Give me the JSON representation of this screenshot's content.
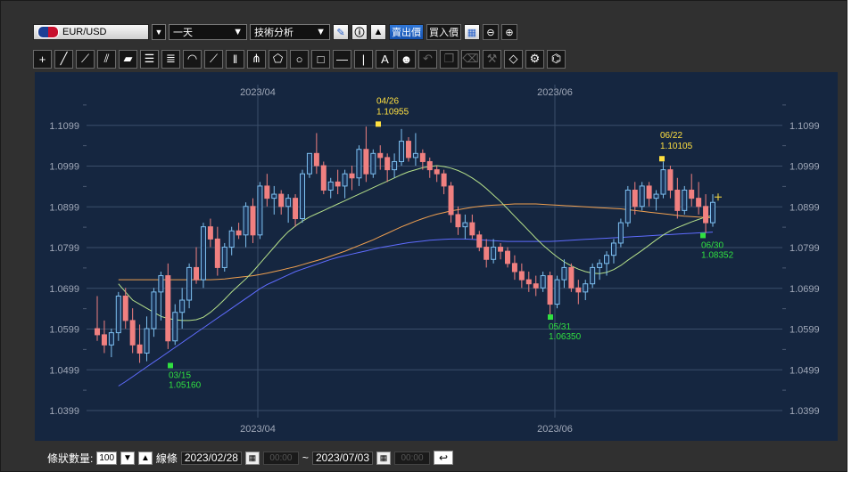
{
  "toolbar": {
    "symbol": "EUR/USD",
    "period": "一天",
    "analysis": "技術分析",
    "bid_label": "賣出價",
    "ask_label": "買入價",
    "icon_names": [
      "pen-icon",
      "info-icon",
      "mountain-chart-icon",
      "chart-type-icon",
      "zoom-out-icon",
      "zoom-in-icon"
    ]
  },
  "drawing_tools": [
    "crosshair-icon",
    "line-icon",
    "ray-icon",
    "extended-line-icon",
    "ruler-icon",
    "parallel-lines-icon",
    "fibonacci-icon",
    "fibonacci-arc-icon",
    "fan-icon",
    "cycle-lines-icon",
    "pitchfork-icon",
    "pentagon-icon",
    "circle-icon",
    "rectangle-icon",
    "horizontal-line-icon",
    "vertical-line-icon",
    "text-icon",
    "emoji-icon",
    "undo-icon",
    "copy-icon",
    "delete-icon",
    "wrench-icon",
    "eraser-icon",
    "settings-icon",
    "magnet-icon"
  ],
  "bottom": {
    "count_label": "條狀數量:",
    "count_value": "100",
    "line_label": "線條",
    "start_date": "2023/02/28",
    "start_time": "00:00",
    "tilde": "~",
    "end_date": "2023/07/03",
    "end_time": "00:00"
  },
  "chart_data": {
    "type": "candlestick",
    "yticks": [
      1.0399,
      1.0499,
      1.0599,
      1.0699,
      1.0799,
      1.0899,
      1.0999,
      1.1099
    ],
    "ylim": [
      1.0399,
      1.1199
    ],
    "xticks": [
      "2023/04",
      "2023/06"
    ],
    "grid": true,
    "annotations": [
      {
        "date": "04/26",
        "value": "1.10955",
        "kind": "high"
      },
      {
        "date": "06/22",
        "value": "1.10105",
        "kind": "high"
      },
      {
        "date": "03/15",
        "value": "1.05160",
        "kind": "low"
      },
      {
        "date": "05/31",
        "value": "1.06350",
        "kind": "low"
      },
      {
        "date": "06/30",
        "value": "1.08352",
        "kind": "low"
      }
    ],
    "candles": [
      [
        1.06,
        1.068,
        1.057,
        1.0585
      ],
      [
        1.0585,
        1.062,
        1.054,
        1.056
      ],
      [
        1.056,
        1.06,
        1.053,
        1.059
      ],
      [
        1.059,
        1.069,
        1.057,
        1.068
      ],
      [
        1.068,
        1.07,
        1.06,
        1.062
      ],
      [
        1.062,
        1.065,
        1.054,
        1.056
      ],
      [
        1.056,
        1.061,
        1.0516,
        1.054
      ],
      [
        1.054,
        1.063,
        1.052,
        1.06
      ],
      [
        1.06,
        1.07,
        1.058,
        1.069
      ],
      [
        1.069,
        1.074,
        1.062,
        1.073
      ],
      [
        1.073,
        1.076,
        1.055,
        1.057
      ],
      [
        1.057,
        1.066,
        1.056,
        1.064
      ],
      [
        1.064,
        1.07,
        1.06,
        1.067
      ],
      [
        1.067,
        1.076,
        1.065,
        1.075
      ],
      [
        1.075,
        1.08,
        1.071,
        1.072
      ],
      [
        1.072,
        1.086,
        1.07,
        1.085
      ],
      [
        1.085,
        1.087,
        1.08,
        1.082
      ],
      [
        1.082,
        1.085,
        1.073,
        1.075
      ],
      [
        1.075,
        1.081,
        1.074,
        1.08
      ],
      [
        1.08,
        1.085,
        1.078,
        1.084
      ],
      [
        1.084,
        1.086,
        1.082,
        1.083
      ],
      [
        1.083,
        1.091,
        1.08,
        1.09
      ],
      [
        1.09,
        1.092,
        1.081,
        1.083
      ],
      [
        1.083,
        1.096,
        1.082,
        1.095
      ],
      [
        1.095,
        1.098,
        1.09,
        1.092
      ],
      [
        1.092,
        1.095,
        1.088,
        1.093
      ],
      [
        1.093,
        1.094,
        1.088,
        1.09
      ],
      [
        1.09,
        1.093,
        1.086,
        1.092
      ],
      [
        1.092,
        1.093,
        1.085,
        1.087
      ],
      [
        1.087,
        1.099,
        1.086,
        1.098
      ],
      [
        1.098,
        1.103,
        1.097,
        1.103
      ],
      [
        1.103,
        1.108,
        1.098,
        1.1
      ],
      [
        1.1,
        1.101,
        1.093,
        1.094
      ],
      [
        1.094,
        1.097,
        1.092,
        1.096
      ],
      [
        1.096,
        1.099,
        1.093,
        1.095
      ],
      [
        1.095,
        1.099,
        1.092,
        1.098
      ],
      [
        1.098,
        1.1,
        1.094,
        1.097
      ],
      [
        1.097,
        1.105,
        1.095,
        1.104
      ],
      [
        1.104,
        1.1096,
        1.096,
        1.098
      ],
      [
        1.098,
        1.104,
        1.097,
        1.103
      ],
      [
        1.103,
        1.105,
        1.099,
        1.102
      ],
      [
        1.102,
        1.103,
        1.096,
        1.099
      ],
      [
        1.099,
        1.103,
        1.097,
        1.101
      ],
      [
        1.101,
        1.109,
        1.1,
        1.106
      ],
      [
        1.106,
        1.107,
        1.101,
        1.102
      ],
      [
        1.102,
        1.108,
        1.1,
        1.103
      ],
      [
        1.103,
        1.104,
        1.099,
        1.101
      ],
      [
        1.101,
        1.102,
        1.097,
        1.099
      ],
      [
        1.099,
        1.1,
        1.096,
        1.098
      ],
      [
        1.098,
        1.099,
        1.093,
        1.095
      ],
      [
        1.095,
        1.096,
        1.086,
        1.088
      ],
      [
        1.088,
        1.09,
        1.083,
        1.085
      ],
      [
        1.085,
        1.088,
        1.082,
        1.086
      ],
      [
        1.086,
        1.088,
        1.082,
        1.083
      ],
      [
        1.083,
        1.084,
        1.079,
        1.08
      ],
      [
        1.08,
        1.082,
        1.075,
        1.077
      ],
      [
        1.077,
        1.082,
        1.076,
        1.08
      ],
      [
        1.08,
        1.081,
        1.077,
        1.079
      ],
      [
        1.079,
        1.08,
        1.075,
        1.076
      ],
      [
        1.076,
        1.078,
        1.072,
        1.074
      ],
      [
        1.074,
        1.076,
        1.07,
        1.072
      ],
      [
        1.072,
        1.074,
        1.069,
        1.071
      ],
      [
        1.071,
        1.073,
        1.068,
        1.07
      ],
      [
        1.07,
        1.074,
        1.069,
        1.073
      ],
      [
        1.073,
        1.074,
        1.0635,
        1.066
      ],
      [
        1.066,
        1.073,
        1.065,
        1.072
      ],
      [
        1.072,
        1.077,
        1.07,
        1.075
      ],
      [
        1.075,
        1.076,
        1.069,
        1.07
      ],
      [
        1.07,
        1.072,
        1.066,
        1.069
      ],
      [
        1.069,
        1.072,
        1.067,
        1.071
      ],
      [
        1.071,
        1.076,
        1.07,
        1.075
      ],
      [
        1.075,
        1.077,
        1.072,
        1.076
      ],
      [
        1.076,
        1.079,
        1.073,
        1.078
      ],
      [
        1.078,
        1.082,
        1.076,
        1.081
      ],
      [
        1.081,
        1.087,
        1.08,
        1.086
      ],
      [
        1.086,
        1.095,
        1.085,
        1.094
      ],
      [
        1.094,
        1.096,
        1.088,
        1.09
      ],
      [
        1.09,
        1.096,
        1.089,
        1.095
      ],
      [
        1.095,
        1.096,
        1.09,
        1.092
      ],
      [
        1.092,
        1.094,
        1.089,
        1.093
      ],
      [
        1.093,
        1.101,
        1.092,
        1.099
      ],
      [
        1.099,
        1.1,
        1.092,
        1.094
      ],
      [
        1.094,
        1.097,
        1.087,
        1.089
      ],
      [
        1.089,
        1.095,
        1.088,
        1.094
      ],
      [
        1.094,
        1.098,
        1.09,
        1.092
      ],
      [
        1.092,
        1.096,
        1.088,
        1.09
      ],
      [
        1.09,
        1.093,
        1.0835,
        1.086
      ],
      [
        1.086,
        1.093,
        1.085,
        1.091
      ]
    ],
    "ma_short": [
      1.071,
      1.069,
      1.067,
      1.066,
      1.065,
      1.064,
      1.063,
      1.0625,
      1.0622,
      1.062,
      1.062,
      1.0622,
      1.0628,
      1.064,
      1.0655,
      1.0672,
      1.069,
      1.0706,
      1.0722,
      1.074,
      1.076,
      1.078,
      1.08,
      1.082,
      1.0838,
      1.0852,
      1.0864,
      1.0874,
      1.0882,
      1.089,
      1.0898,
      1.0906,
      1.0914,
      1.0922,
      1.093,
      1.0938,
      1.0946,
      1.0954,
      1.0962,
      1.097,
      1.0978,
      1.0985,
      1.099,
      1.0995,
      1.0998,
      1.1,
      1.0998,
      1.0994,
      1.0988,
      1.098,
      1.097,
      1.0958,
      1.0944,
      1.0928,
      1.0912,
      1.0894,
      1.0876,
      1.0858,
      1.084,
      1.0822,
      1.0805,
      1.079,
      1.0776,
      1.0764,
      1.0754,
      1.0746,
      1.074,
      1.0736,
      1.0735,
      1.0738,
      1.0745,
      1.0755,
      1.0768,
      1.078,
      1.0792,
      1.0805,
      1.0818,
      1.083,
      1.084,
      1.0848,
      1.0855,
      1.0862,
      1.0868,
      1.0874,
      1.0878
    ],
    "ma_mid": [
      1.072,
      1.072,
      1.072,
      1.072,
      1.072,
      1.072,
      1.072,
      1.072,
      1.072,
      1.072,
      1.072,
      1.072,
      1.072,
      1.072,
      1.0721,
      1.0722,
      1.0724,
      1.0726,
      1.0728,
      1.073,
      1.0733,
      1.0736,
      1.074,
      1.0744,
      1.0748,
      1.0752,
      1.0757,
      1.0762,
      1.0767,
      1.0772,
      1.0778,
      1.0784,
      1.079,
      1.0797,
      1.0804,
      1.0811,
      1.0818,
      1.0826,
      1.0834,
      1.0842,
      1.085,
      1.0857,
      1.0864,
      1.087,
      1.0876,
      1.0881,
      1.0885,
      1.0889,
      1.0892,
      1.0895,
      1.0898,
      1.09,
      1.0902,
      1.0903,
      1.0904,
      1.0905,
      1.0906,
      1.0906,
      1.0906,
      1.0906,
      1.0905,
      1.0904,
      1.0903,
      1.0902,
      1.0901,
      1.09,
      1.0899,
      1.0898,
      1.0897,
      1.0896,
      1.0895,
      1.0894,
      1.0892,
      1.089,
      1.0888,
      1.0886,
      1.0884,
      1.0882,
      1.088,
      1.0878,
      1.0876,
      1.0875,
      1.0874,
      1.0873,
      1.0872
    ],
    "ma_long": [
      1.0459,
      1.047,
      1.0482,
      1.0494,
      1.0506,
      1.0518,
      1.053,
      1.0542,
      1.0554,
      1.0566,
      1.0578,
      1.059,
      1.0602,
      1.0614,
      1.0626,
      1.0638,
      1.065,
      1.0662,
      1.0674,
      1.0686,
      1.0698,
      1.0708,
      1.0716,
      1.0724,
      1.0732,
      1.074,
      1.0746,
      1.0752,
      1.0758,
      1.0764,
      1.077,
      1.0775,
      1.0779,
      1.0783,
      1.0787,
      1.0791,
      1.0795,
      1.0799,
      1.0802,
      1.0805,
      1.0808,
      1.0811,
      1.0813,
      1.0815,
      1.0817,
      1.0818,
      1.0819,
      1.082,
      1.082,
      1.082,
      1.0819,
      1.0818,
      1.0817,
      1.0816,
      1.0815,
      1.0814,
      1.0814,
      1.0814,
      1.0814,
      1.0814,
      1.0814,
      1.0814,
      1.0815,
      1.0816,
      1.0817,
      1.0818,
      1.0819,
      1.082,
      1.0821,
      1.0822,
      1.0823,
      1.0824,
      1.0825,
      1.0826,
      1.0827,
      1.0828,
      1.0829,
      1.083,
      1.0831,
      1.0832,
      1.0833,
      1.0834,
      1.0835,
      1.0836,
      1.0837
    ]
  }
}
